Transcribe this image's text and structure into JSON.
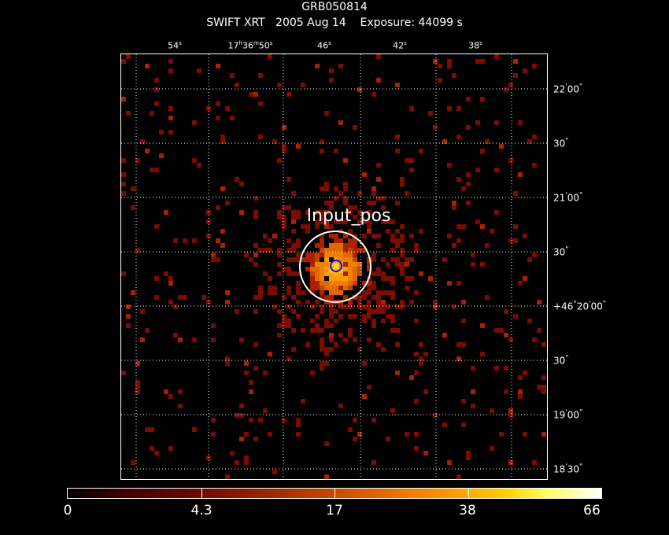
{
  "header": {
    "grb_name": "GRB050814",
    "subtitle": "SWIFT XRT   2005 Aug 14    Exposure: 44099 s"
  },
  "ra_axis": [
    "54",
    "17h36m50s",
    "46",
    "42",
    "38"
  ],
  "dec_axis": [
    "22'00\"",
    "30\"",
    "21'00\"",
    "30\"",
    "+46°20'00\"",
    "30\"",
    "19'00\"",
    "18'30\""
  ],
  "region_label": "Input_pos",
  "colorbar": {
    "labels": [
      "0",
      "4.3",
      "17",
      "38",
      "66"
    ],
    "colors": [
      "#000000",
      "#6a0a00",
      "#c24400",
      "#ff9a00",
      "#ffff60",
      "#ffffff"
    ]
  },
  "colors": {
    "background": "#000000",
    "grid": "#ffffff",
    "circle_outer": "#ffffff",
    "circle_inner": "#1010ff",
    "pixel_dim": "#7a0d00",
    "pixel_mid": "#a82200",
    "pixel_bright": "#e06a00"
  }
}
